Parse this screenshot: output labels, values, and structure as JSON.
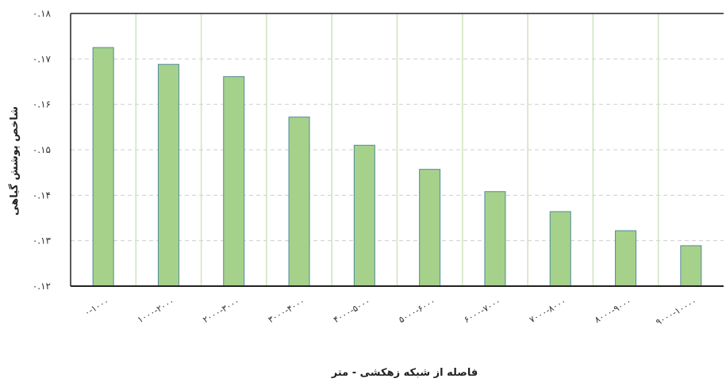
{
  "chart_data": {
    "type": "bar",
    "categories": [
      "۰-۱۰۰۰",
      "۱۰۰۰-۲۰۰۰",
      "۲۰۰۰-۳۰۰۰",
      "۳۰۰۰-۴۰۰۰",
      "۴۰۰۰-۵۰۰۰",
      "۵۰۰۰-۶۰۰۰",
      "۶۰۰۰-۷۰۰۰",
      "۷۰۰۰-۸۰۰۰",
      "۸۰۰۰-۹۰۰۰",
      "۹۰۰۰-۱۰۰۰۰"
    ],
    "values": [
      0.1725,
      0.1688,
      0.1661,
      0.1572,
      0.151,
      0.1457,
      0.1408,
      0.1364,
      0.1322,
      0.1289
    ],
    "ylim": [
      0.12,
      0.18
    ],
    "yticks": [
      0.12,
      0.13,
      0.14,
      0.15,
      0.16,
      0.17,
      0.18
    ],
    "ytick_labels": [
      "۰.۱۲",
      "۰.۱۳",
      "۰.۱۴",
      "۰.۱۵",
      "۰.۱۶",
      "۰.۱۷",
      "۰.۱۸"
    ],
    "xlabel": "فاصله از شبکه زهکشی - متر",
    "ylabel": "شاخص پوشش گیاهی",
    "grid": {
      "horizontal": true,
      "horizontal_style": "dashed",
      "vertical": true
    },
    "colors": {
      "bar_fill": "#a6d18a",
      "bar_stroke": "#4f8a9a",
      "grid_h": "#cfcfcf",
      "grid_v": "#cfe3bd",
      "axis": "#222222"
    }
  }
}
